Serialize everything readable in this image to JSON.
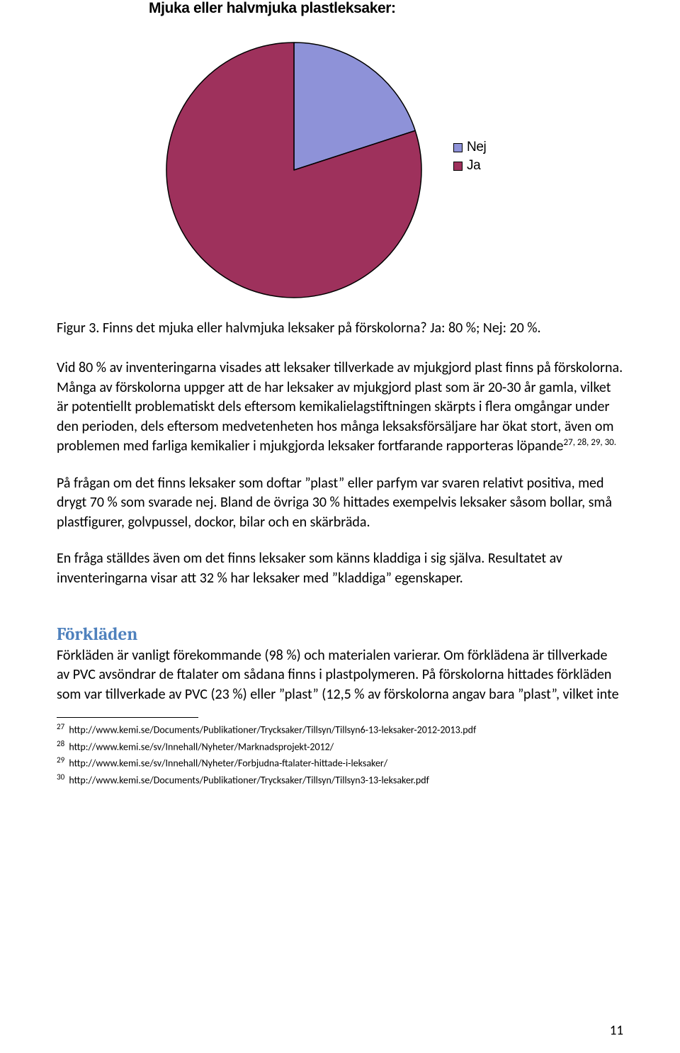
{
  "chart": {
    "type": "pie",
    "title": "Mjuka eller halvmjuka plastleksaker:",
    "slices": [
      {
        "label": "Nej",
        "value": 20,
        "color": "#8e92d8"
      },
      {
        "label": "Ja",
        "value": 80,
        "color": "#9e315c"
      }
    ],
    "slice_stroke": "#000000",
    "slice_stroke_width": 1.5,
    "legend_swatch_border": "#000000",
    "radius": 180,
    "start_angle_deg": -90,
    "title_fontsize": 21,
    "legend_fontsize": 19
  },
  "caption": "Figur 3. Finns det mjuka eller halvmjuka leksaker på förskolorna? Ja: 80 %; Nej: 20 %.",
  "para1_part1": "Vid 80 % av inventeringarna visades att leksaker tillverkade av mjukgjord plast finns på förskolorna. Många av förskolorna uppger att de har leksaker av mjukgjord plast som är 20-30 år gamla, vilket är potentiellt problematiskt dels eftersom kemikalielagstiftningen skärpts i flera omgångar under den perioden, dels eftersom medvetenheten hos många leksaksförsäljare har ökat stort, även om problemen med farliga kemikalier i mjukgjorda leksaker fortfarande rapporteras löpande",
  "para1_refs": "27, 28, 29, 30.",
  "para2": "På frågan om det finns leksaker som doftar ”plast” eller parfym var svaren relativt positiva, med drygt 70 % som svarade nej. Bland de övriga 30 % hittades exempelvis leksaker såsom bollar, små plastfigurer, golvpussel, dockor, bilar och en skärbräda.",
  "para3": "En fråga ställdes även om det finns leksaker som känns kladdiga i sig själva. Resultatet av inventeringarna visar att 32 % har leksaker med ”kladdiga” egenskaper.",
  "section_heading": "Förkläden",
  "para4": "Förkläden är vanligt förekommande (98 %) och materialen varierar. Om förklädena är tillverkade av PVC avsöndrar de ftalater om sådana finns i plastpolymeren. På förskolorna hittades förkläden som var tillverkade av PVC (23 %) eller ”plast” (12,5 % av förskolorna angav bara ”plast”, vilket inte",
  "footnotes": [
    {
      "num": "27",
      "text": "http://www.kemi.se/Documents/Publikationer/Trycksaker/Tillsyn/Tillsyn6-13-leksaker-2012-2013.pdf"
    },
    {
      "num": "28",
      "text": "http://www.kemi.se/sv/Innehall/Nyheter/Marknadsprojekt-2012/"
    },
    {
      "num": "29",
      "text": "http://www.kemi.se/sv/Innehall/Nyheter/Forbjudna-ftalater-hittade-i-leksaker/"
    },
    {
      "num": "30",
      "text": "http://www.kemi.se/Documents/Publikationer/Trycksaker/Tillsyn/Tillsyn3-13-leksaker.pdf"
    }
  ],
  "page_number": "11"
}
